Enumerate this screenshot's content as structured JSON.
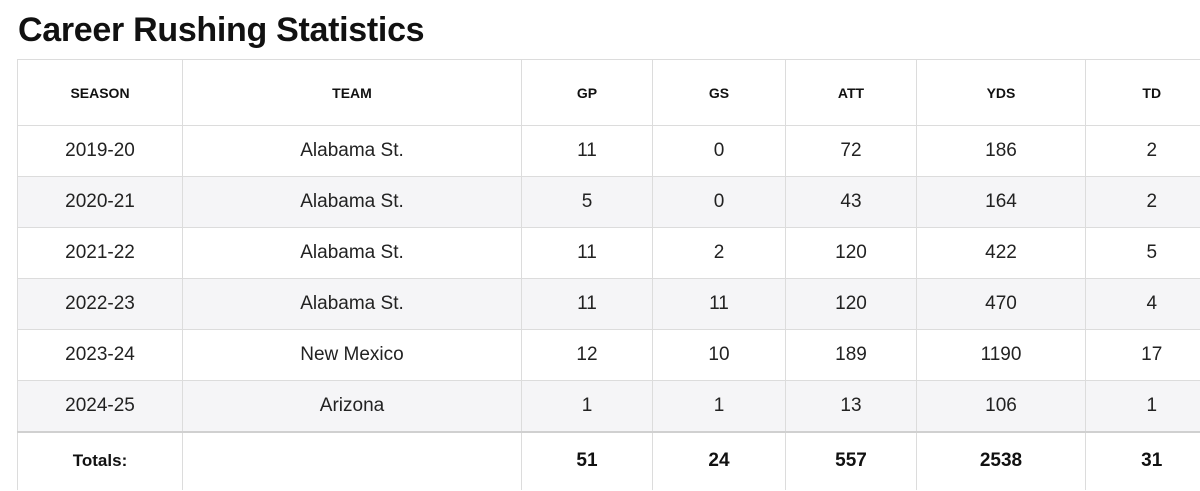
{
  "title": "Career Rushing Statistics",
  "columns": [
    "SEASON",
    "TEAM",
    "GP",
    "GS",
    "ATT",
    "YDS",
    "TD"
  ],
  "rows": [
    [
      "2019-20",
      "Alabama St.",
      "11",
      "0",
      "72",
      "186",
      "2"
    ],
    [
      "2020-21",
      "Alabama St.",
      "5",
      "0",
      "43",
      "164",
      "2"
    ],
    [
      "2021-22",
      "Alabama St.",
      "11",
      "2",
      "120",
      "422",
      "5"
    ],
    [
      "2022-23",
      "Alabama St.",
      "11",
      "11",
      "120",
      "470",
      "4"
    ],
    [
      "2023-24",
      "New Mexico",
      "12",
      "10",
      "189",
      "1190",
      "17"
    ],
    [
      "2024-25",
      "Arizona",
      "1",
      "1",
      "13",
      "106",
      "1"
    ]
  ],
  "totals": [
    "Totals:",
    "",
    "51",
    "24",
    "557",
    "2538",
    "31"
  ]
}
